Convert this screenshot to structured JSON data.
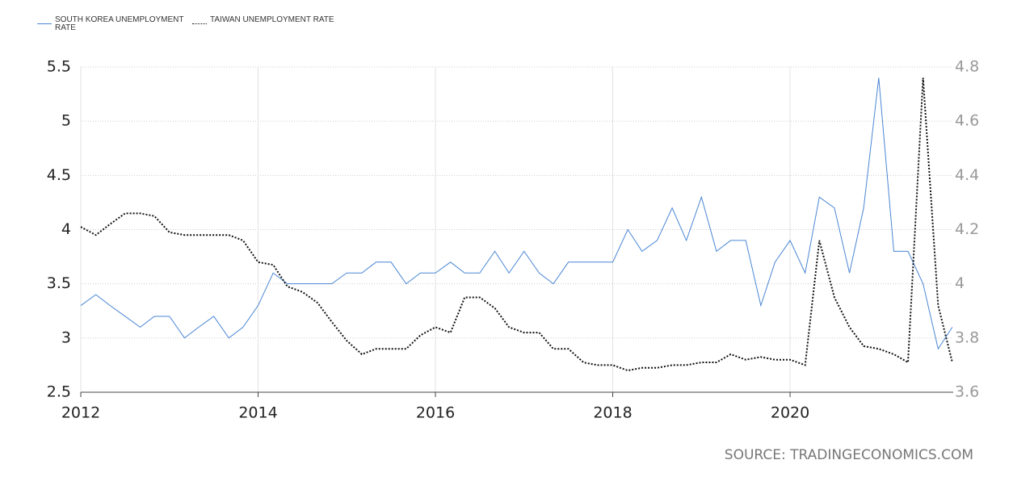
{
  "chart_data": {
    "type": "line",
    "x": [
      2012,
      2012.17,
      2012.33,
      2012.5,
      2012.67,
      2012.83,
      2013,
      2013.17,
      2013.33,
      2013.5,
      2013.67,
      2013.83,
      2014,
      2014.17,
      2014.33,
      2014.5,
      2014.67,
      2014.83,
      2015,
      2015.17,
      2015.33,
      2015.5,
      2015.67,
      2015.83,
      2016,
      2016.17,
      2016.33,
      2016.5,
      2016.67,
      2016.83,
      2017,
      2017.17,
      2017.33,
      2017.5,
      2017.67,
      2017.83,
      2018,
      2018.17,
      2018.33,
      2018.5,
      2018.67,
      2018.83,
      2019,
      2019.17,
      2019.33,
      2019.5,
      2019.67,
      2019.83,
      2020,
      2020.17,
      2020.33,
      2020.5,
      2020.67,
      2020.83,
      2021,
      2021.17,
      2021.33,
      2021.5,
      2021.67,
      2021.83
    ],
    "series": [
      {
        "name": "SOUTH KOREA UNEMPLOYMENT RATE",
        "color": "#4a86d4",
        "axis": "y",
        "values": [
          3.3,
          3.4,
          3.3,
          3.2,
          3.1,
          3.2,
          3.2,
          3.0,
          3.1,
          3.2,
          3.0,
          3.1,
          3.3,
          3.6,
          3.5,
          3.5,
          3.5,
          3.5,
          3.6,
          3.6,
          3.7,
          3.7,
          3.5,
          3.6,
          3.6,
          3.7,
          3.6,
          3.6,
          3.8,
          3.6,
          3.8,
          3.6,
          3.5,
          3.7,
          3.7,
          3.7,
          3.7,
          4.0,
          3.8,
          3.9,
          4.2,
          3.9,
          4.3,
          3.8,
          3.9,
          3.9,
          3.3,
          3.7,
          3.9,
          3.6,
          4.3,
          4.2,
          3.6,
          4.2,
          5.4,
          3.8,
          3.8,
          3.5,
          2.9,
          3.1
        ]
      },
      {
        "name": "TAIWAN UNEMPLOYMENT RATE",
        "color": "#111111",
        "axis": "y2",
        "values": [
          4.21,
          4.18,
          4.22,
          4.26,
          4.26,
          4.25,
          4.19,
          4.18,
          4.18,
          4.18,
          4.18,
          4.16,
          4.08,
          4.07,
          3.99,
          3.97,
          3.93,
          3.86,
          3.79,
          3.74,
          3.76,
          3.76,
          3.76,
          3.81,
          3.84,
          3.82,
          3.95,
          3.95,
          3.91,
          3.84,
          3.82,
          3.82,
          3.76,
          3.76,
          3.71,
          3.7,
          3.7,
          3.68,
          3.69,
          3.69,
          3.7,
          3.7,
          3.71,
          3.71,
          3.74,
          3.72,
          3.73,
          3.72,
          3.72,
          3.7,
          4.16,
          3.95,
          3.84,
          3.77,
          3.76,
          3.74,
          3.71,
          4.76,
          3.92,
          3.71
        ]
      }
    ],
    "xlim": [
      2012,
      2021.84
    ],
    "xticks": [
      2012,
      2014,
      2016,
      2018,
      2020
    ],
    "ylim": [
      2.5,
      5.5
    ],
    "yticks": [
      2.5,
      3,
      3.5,
      4,
      4.5,
      5,
      5.5
    ],
    "y2lim": [
      3.6,
      4.8
    ],
    "y2ticks": [
      3.6,
      3.8,
      4,
      4.2,
      4.4,
      4.6,
      4.8
    ],
    "grid": true,
    "legend": "top-left",
    "source": "SOURCE: TRADINGECONOMICS.COM"
  }
}
